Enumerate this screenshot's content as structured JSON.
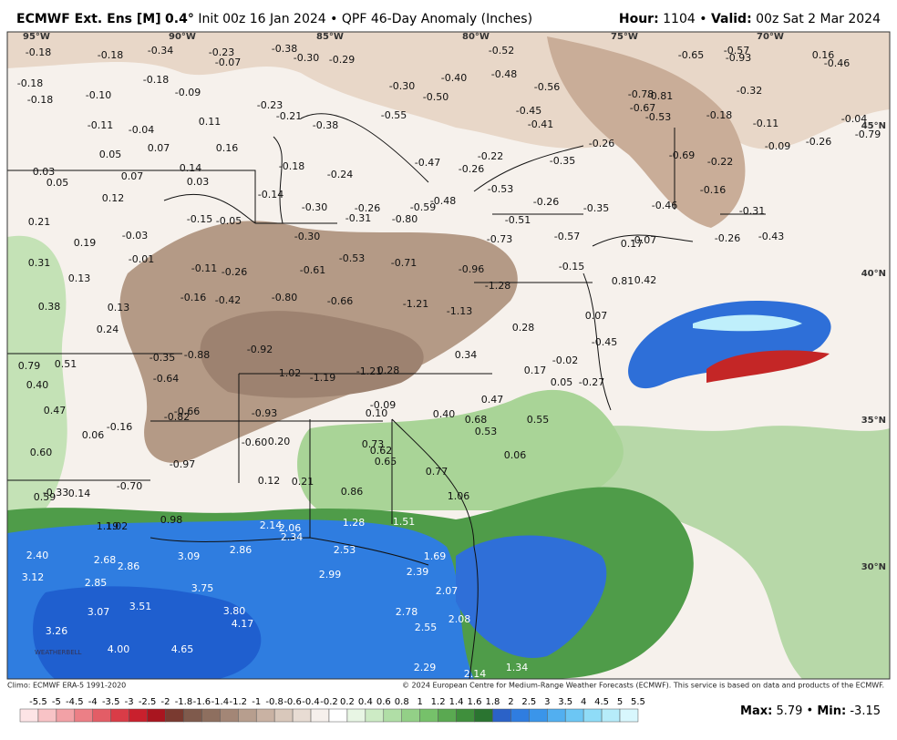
{
  "header": {
    "model": "ECMWF Ext. Ens [M]",
    "resolution": "0.4°",
    "init": "Init 00z 16 Jan 2024",
    "product": "QPF 46-Day Anomaly (Inches)",
    "hour_label": "Hour:",
    "hour": "1104",
    "valid_label": "Valid:",
    "valid": "00z Sat 2 Mar 2024"
  },
  "grid_labels": {
    "lon": [
      "95°W",
      "90°W",
      "85°W",
      "80°W",
      "75°W",
      "70°W"
    ],
    "lat": [
      "45°N",
      "40°N",
      "35°N",
      "30°N"
    ]
  },
  "stations": [
    "-0.18",
    "-0.18",
    "-0.34",
    "-0.23",
    "-0.38",
    "-0.07",
    "-0.30",
    "-0.29",
    "-0.52",
    "-0.65",
    "-0.57",
    "-0.93",
    "0.16",
    "-0.46",
    "-0.18",
    "-0.18",
    "-0.18",
    "-0.48",
    "-0.40",
    "-0.30",
    "-0.56",
    "-0.09",
    "-0.10",
    "-0.50",
    "-0.78",
    "-0.81",
    "-0.32",
    "-0.23",
    "-0.21",
    "-0.67",
    "-0.53",
    "-0.45",
    "-0.55",
    "-0.38",
    "0.11",
    "-0.41",
    "-0.18",
    "-0.11",
    "-0.04",
    "-0.79",
    "-0.11",
    "-0.04",
    "0.07",
    "0.16",
    "-0.26",
    "-0.09",
    "-0.26",
    "0.05",
    "-0.47",
    "-0.22",
    "-0.35",
    "-0.69",
    "-0.22",
    "-0.18",
    "-0.26",
    "0.14",
    "0.03",
    "0.07",
    "-0.24",
    "0.05",
    "0.03",
    "-0.53",
    "-0.16",
    "-0.14",
    "0.12",
    "-0.26",
    "-0.30",
    "-0.26",
    "-0.59",
    "-0.48",
    "-0.46",
    "-0.35",
    "-0.31",
    "-0.31",
    "-0.80",
    "-0.51",
    "-0.15",
    "-0.05",
    "0.21",
    "-0.03",
    "-0.30",
    "-0.73",
    "-0.57",
    "0.19",
    "-0.07",
    "0.17",
    "-0.26",
    "-0.43",
    "-0.01",
    "-0.53",
    "-0.71",
    "-0.96",
    "-0.15",
    "0.31",
    "-0.11",
    "-0.26",
    "-0.61",
    "0.13",
    "0.81",
    "0.42",
    "-1.28",
    "-0.80",
    "-0.42",
    "-0.16",
    "-0.66",
    "-1.21",
    "0.38",
    "0.13",
    "-1.13",
    "0.07",
    "0.28",
    "0.24",
    "-0.45",
    "-0.92",
    "-0.88",
    "-0.35",
    "0.34",
    "-0.02",
    "0.51",
    "0.79",
    "0.17",
    "-1.02",
    "-1.21",
    "0.28",
    "-1.19",
    "-0.64",
    "0.40",
    "0.05",
    "-0.27",
    "0.47",
    "-0.09",
    "0.47",
    "-0.66",
    "-0.82",
    "-0.93",
    "0.10",
    "0.40",
    "0.68",
    "0.55",
    "-0.16",
    "0.06",
    "0.53",
    "-0.60",
    "0.20",
    "0.73",
    "0.62",
    "0.60",
    "0.06",
    "0.65",
    "-0.97",
    "0.77",
    "-0.70",
    "0.12",
    "0.21",
    "-0.33",
    "0.14",
    "0.59",
    "0.86",
    "1.06",
    "0.98",
    "1.19",
    "1.02",
    "1.28",
    "1.51",
    "2.14",
    "2.06",
    "2.34",
    "2.86",
    "2.53",
    "3.09",
    "1.69",
    "2.40",
    "2.68",
    "2.86",
    "3.12",
    "2.85",
    "2.99",
    "2.39",
    "3.75",
    "2.07",
    "3.07",
    "3.51",
    "3.80",
    "2.78",
    "2.08",
    "4.17",
    "2.55",
    "3.26",
    "4.00",
    "4.65",
    "2.29",
    "1.34",
    "2.14"
  ],
  "colorbar": [
    "-5.5",
    "-5",
    "-4.5",
    "-4",
    "-3.5",
    "-3",
    "-2.5",
    "-2",
    "-1.8",
    "-1.6",
    "-1.4",
    "-1.2",
    "-1",
    "-0.8",
    "-0.6",
    "-0.4",
    "-0.2",
    "0.2",
    "0.4",
    "0.6",
    "0.8",
    "1",
    "1.2",
    "1.4",
    "1.6",
    "1.8",
    "2",
    "2.5",
    "3",
    "3.5",
    "4",
    "4.5",
    "5",
    "5.5"
  ],
  "footer": {
    "climo": "Climo: ECMWF ERA-5 1991-2020",
    "copyright": "© 2024 European Centre for Medium-Range Weather Forecasts (ECMWF). This service is based on data and products of the ECMWF.",
    "max_label": "Max:",
    "max": "5.79",
    "min_label": "Min:",
    "min": "-3.15",
    "logo": "WEATHERBELL"
  }
}
